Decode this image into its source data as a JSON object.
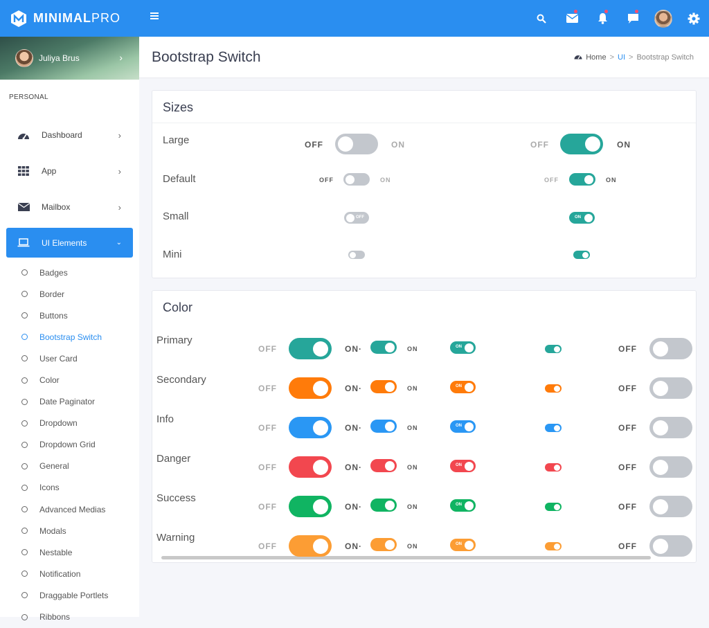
{
  "brand": {
    "name_bold": "MINIMAL",
    "name_light": "PRO"
  },
  "user": {
    "name": "Juliya Brus"
  },
  "sidebar": {
    "section_label": "PERSONAL",
    "items": [
      {
        "label": "Dashboard"
      },
      {
        "label": "App"
      },
      {
        "label": "Mailbox"
      },
      {
        "label": "UI Elements"
      }
    ],
    "subitems": [
      {
        "label": "Badges"
      },
      {
        "label": "Border"
      },
      {
        "label": "Buttons"
      },
      {
        "label": "Bootstrap Switch"
      },
      {
        "label": "User Card"
      },
      {
        "label": "Color"
      },
      {
        "label": "Date Paginator"
      },
      {
        "label": "Dropdown"
      },
      {
        "label": "Dropdown Grid"
      },
      {
        "label": "General"
      },
      {
        "label": "Icons"
      },
      {
        "label": "Advanced Medias"
      },
      {
        "label": "Modals"
      },
      {
        "label": "Nestable"
      },
      {
        "label": "Notification"
      },
      {
        "label": "Draggable Portlets"
      },
      {
        "label": "Ribbons"
      }
    ],
    "current_subitem": "Bootstrap Switch"
  },
  "page": {
    "title": "Bootstrap Switch"
  },
  "breadcrumb": {
    "home": "Home",
    "sep": ">",
    "section": "UI",
    "current": "Bootstrap Switch"
  },
  "sizes": {
    "title": "Sizes",
    "rows": [
      {
        "label": "Large"
      },
      {
        "label": "Default"
      },
      {
        "label": "Small"
      },
      {
        "label": "Mini"
      }
    ],
    "off": "OFF",
    "on": "ON"
  },
  "colors": {
    "title": "Color",
    "off": "OFF",
    "on": "ON",
    "on_cut": "ON·",
    "rows": [
      {
        "label": "Primary",
        "color": "#26a69a"
      },
      {
        "label": "Secondary",
        "color": "#ff7b0a"
      },
      {
        "label": "Info",
        "color": "#2a97f4"
      },
      {
        "label": "Danger",
        "color": "#f2474f"
      },
      {
        "label": "Success",
        "color": "#10b462"
      },
      {
        "label": "Warning",
        "color": "#fc9d34"
      }
    ]
  },
  "theme": {
    "accent": "#2a8ef0",
    "switch_on": "#26a69a",
    "switch_off": "#c3c7cd"
  }
}
